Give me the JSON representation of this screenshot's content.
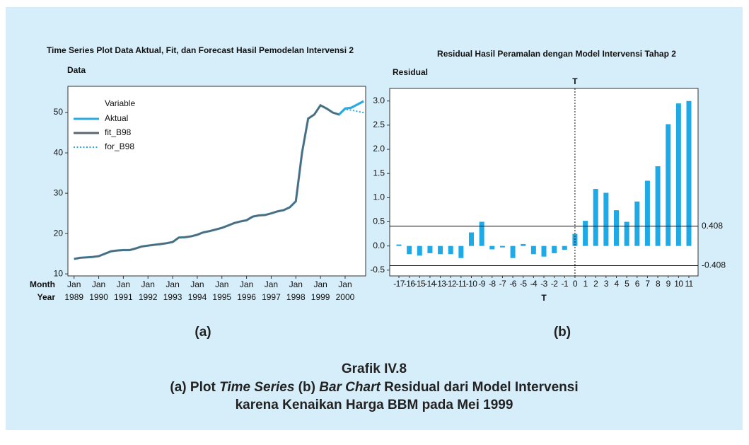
{
  "chart_data": [
    {
      "type": "line",
      "panel_label": "(a)",
      "title": "Time Series Plot Data Aktual, Fit, dan Forecast Hasil Pemodelan Intervensi 2",
      "ylabel": "Data",
      "xlabel_month": "Month",
      "xlabel_year": "Year",
      "legend_title": "Variable",
      "x": [
        "1989-01",
        "1989-04",
        "1989-07",
        "1989-10",
        "1990-01",
        "1990-04",
        "1990-07",
        "1990-10",
        "1991-01",
        "1991-04",
        "1991-07",
        "1991-10",
        "1992-01",
        "1992-04",
        "1992-07",
        "1992-10",
        "1993-01",
        "1993-04",
        "1993-07",
        "1993-10",
        "1994-01",
        "1994-04",
        "1994-07",
        "1994-10",
        "1995-01",
        "1995-04",
        "1995-07",
        "1995-10",
        "1996-01",
        "1996-04",
        "1996-07",
        "1996-10",
        "1997-01",
        "1997-04",
        "1997-07",
        "1997-10",
        "1998-01",
        "1998-04",
        "1998-07",
        "1998-10",
        "1999-01",
        "1999-04",
        "1999-07",
        "1999-10",
        "2000-01",
        "2000-04",
        "2000-07",
        "2000-10"
      ],
      "series": [
        {
          "name": "Aktual",
          "color": "#29abe2",
          "style": "solid",
          "values": [
            13.7,
            14.0,
            14.1,
            14.2,
            14.4,
            15.0,
            15.6,
            15.8,
            15.9,
            15.9,
            16.3,
            16.8,
            17.0,
            17.2,
            17.4,
            17.6,
            17.9,
            19.0,
            19.1,
            19.3,
            19.7,
            20.3,
            20.6,
            21.0,
            21.4,
            22.0,
            22.6,
            23.0,
            23.3,
            24.2,
            24.5,
            24.6,
            25.0,
            25.5,
            25.8,
            26.5,
            28.0,
            40.0,
            48.5,
            49.5,
            51.8,
            51.0,
            50.0,
            49.5,
            51.0,
            51.2,
            52.0,
            52.8
          ]
        },
        {
          "name": "fit_B98",
          "color": "#5b6770",
          "style": "solid",
          "values": [
            13.7,
            14.0,
            14.1,
            14.2,
            14.4,
            15.0,
            15.6,
            15.8,
            15.9,
            15.9,
            16.3,
            16.8,
            17.0,
            17.2,
            17.4,
            17.6,
            17.9,
            19.0,
            19.1,
            19.3,
            19.7,
            20.3,
            20.6,
            21.0,
            21.4,
            22.0,
            22.6,
            23.0,
            23.3,
            24.2,
            24.5,
            24.6,
            25.0,
            25.5,
            25.8,
            26.5,
            28.0,
            40.0,
            48.5,
            49.5,
            51.8,
            51.0,
            50.0,
            49.5,
            null,
            null,
            null,
            null
          ]
        },
        {
          "name": "for_B98",
          "color": "#29abe2",
          "style": "dotted",
          "values": [
            null,
            null,
            null,
            null,
            null,
            null,
            null,
            null,
            null,
            null,
            null,
            null,
            null,
            null,
            null,
            null,
            null,
            null,
            null,
            null,
            null,
            null,
            null,
            null,
            null,
            null,
            null,
            null,
            null,
            null,
            null,
            null,
            null,
            null,
            null,
            null,
            null,
            null,
            null,
            null,
            null,
            null,
            null,
            49.5,
            50.8,
            50.6,
            50.3,
            50.0
          ]
        }
      ],
      "xlim": [
        "1988-10",
        "2000-11"
      ],
      "xticks": [
        {
          "value": "1989-01",
          "label": "Jan",
          "year": "1989"
        },
        {
          "value": "1990-01",
          "label": "Jan",
          "year": "1990"
        },
        {
          "value": "1991-01",
          "label": "Jan",
          "year": "1991"
        },
        {
          "value": "1992-01",
          "label": "Jan",
          "year": "1992"
        },
        {
          "value": "1993-01",
          "label": "Jan",
          "year": "1993"
        },
        {
          "value": "1994-01",
          "label": "Jan",
          "year": "1994"
        },
        {
          "value": "1995-01",
          "label": "Jan",
          "year": "1995"
        },
        {
          "value": "1996-01",
          "label": "Jan",
          "year": "1996"
        },
        {
          "value": "1997-01",
          "label": "Jan",
          "year": "1997"
        },
        {
          "value": "1998-01",
          "label": "Jan",
          "year": "1998"
        },
        {
          "value": "1999-01",
          "label": "Jan",
          "year": "1999"
        },
        {
          "value": "2000-01",
          "label": "Jan",
          "year": "2000"
        }
      ],
      "ylim": [
        9.5,
        56.5
      ],
      "yticks": [
        10,
        20,
        30,
        40,
        50
      ]
    },
    {
      "type": "bar",
      "panel_label": "(b)",
      "title": "Residual Hasil Peramalan dengan Model Intervensi Tahap 2",
      "ylabel": "Residual",
      "xlabel": "T",
      "vline_at": "0",
      "vline_label": "T",
      "color": "#1eaae7",
      "categories": [
        "-17",
        "-16",
        "-15",
        "-14",
        "-13",
        "-12",
        "-11",
        "-10",
        "-9",
        "-8",
        "-7",
        "-6",
        "-5",
        "-4",
        "-3",
        "-2",
        "-1",
        "0",
        "1",
        "2",
        "3",
        "4",
        "5",
        "6",
        "7",
        "8",
        "9",
        "10",
        "11"
      ],
      "values": [
        0.03,
        -0.17,
        -0.2,
        -0.15,
        -0.17,
        -0.17,
        -0.25,
        0.28,
        0.5,
        -0.07,
        -0.03,
        -0.25,
        0.04,
        -0.17,
        -0.22,
        -0.15,
        -0.08,
        0.25,
        0.52,
        1.18,
        1.1,
        0.74,
        0.5,
        0.92,
        1.35,
        1.65,
        2.52,
        2.95,
        3.0
      ],
      "ref_lines": [
        0.408,
        -0.408
      ],
      "ylim": [
        -0.62,
        3.26
      ],
      "yticks": [
        -0.5,
        {
          "value": 0,
          "label": "0.0"
        },
        0.5,
        {
          "value": 1,
          "label": "1.0"
        },
        1.5,
        {
          "value": 2,
          "label": "2.0"
        },
        2.5,
        {
          "value": 3,
          "label": "3.0"
        }
      ]
    }
  ],
  "caption": {
    "title": "Grafik IV.8",
    "line1": [
      "(a) Plot ",
      "Time Series",
      " (b) ",
      "Bar Chart",
      " Residual dari Model Intervensi"
    ],
    "line2": "karena Kenaikan Harga BBM pada Mei 1999"
  }
}
